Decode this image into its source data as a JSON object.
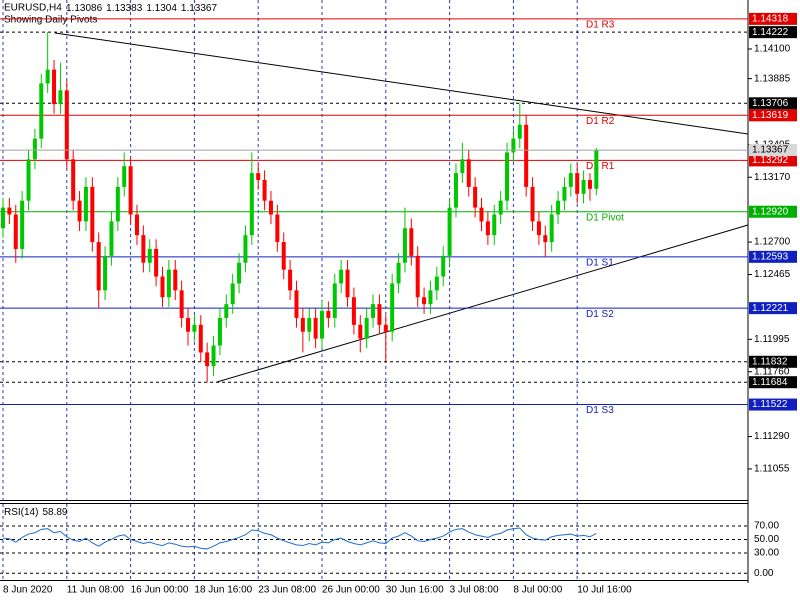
{
  "chart_data": {
    "type": "candlestick",
    "title": "EURUSD,H4",
    "subtitle": "Showing Daily Pivots",
    "up_color": "#00c800",
    "down_color": "#ff0000",
    "grid_color": "#1f3fc0",
    "categories": [
      "8 Jun 2020",
      null,
      null,
      null,
      null,
      null,
      null,
      null,
      null,
      null,
      "11 Jun 08:00",
      null,
      null,
      null,
      null,
      null,
      null,
      null,
      null,
      null,
      "16 Jun 00:00",
      null,
      null,
      null,
      null,
      null,
      null,
      null,
      null,
      null,
      "18 Jun 16:00",
      null,
      null,
      null,
      null,
      null,
      null,
      null,
      null,
      null,
      "23 Jun 08:00",
      null,
      null,
      null,
      null,
      null,
      null,
      null,
      null,
      null,
      "26 Jun 00:00",
      null,
      null,
      null,
      null,
      null,
      null,
      null,
      null,
      null,
      "30 Jun 16:00",
      null,
      null,
      null,
      null,
      null,
      null,
      null,
      null,
      null,
      "3 Jul 08:00",
      null,
      null,
      null,
      null,
      null,
      null,
      null,
      null,
      null,
      "8 Jul 00:00",
      null,
      null,
      null,
      null,
      null,
      null,
      null,
      null,
      null,
      "10 Jul 16:00",
      null,
      null,
      null
    ],
    "candles": [
      [
        1.128,
        1.1302,
        1.1273,
        1.1295
      ],
      [
        1.1295,
        1.1302,
        1.1283,
        1.129
      ],
      [
        1.129,
        1.1297,
        1.1255,
        1.1265
      ],
      [
        1.1265,
        1.1307,
        1.1258,
        1.13
      ],
      [
        1.13,
        1.1337,
        1.1293,
        1.133
      ],
      [
        1.133,
        1.1352,
        1.1323,
        1.1345
      ],
      [
        1.1345,
        1.1392,
        1.1338,
        1.1385
      ],
      [
        1.1385,
        1.14222,
        1.1378,
        1.1395
      ],
      [
        1.1395,
        1.1402,
        1.1363,
        1.137
      ],
      [
        1.137,
        1.14,
        1.1363,
        1.138
      ],
      [
        1.138,
        1.1387,
        1.1323,
        1.133
      ],
      [
        1.133,
        1.1337,
        1.1293,
        1.13
      ],
      [
        1.13,
        1.1307,
        1.1278,
        1.1285
      ],
      [
        1.1285,
        1.1317,
        1.1278,
        1.131
      ],
      [
        1.131,
        1.1317,
        1.1263,
        1.127
      ],
      [
        1.127,
        1.1277,
        1.1222,
        1.1235
      ],
      [
        1.1235,
        1.1267,
        1.1228,
        1.126
      ],
      [
        1.126,
        1.1292,
        1.1253,
        1.1285
      ],
      [
        1.1285,
        1.1317,
        1.1278,
        1.131
      ],
      [
        1.131,
        1.1335,
        1.1303,
        1.1325
      ],
      [
        1.1325,
        1.1332,
        1.1283,
        1.129
      ],
      [
        1.129,
        1.1297,
        1.1268,
        1.1275
      ],
      [
        1.1275,
        1.1282,
        1.1248,
        1.1255
      ],
      [
        1.1255,
        1.1272,
        1.1248,
        1.1265
      ],
      [
        1.1265,
        1.1272,
        1.1238,
        1.1245
      ],
      [
        1.1245,
        1.1252,
        1.1223,
        1.123
      ],
      [
        1.123,
        1.1257,
        1.1223,
        1.125
      ],
      [
        1.125,
        1.1257,
        1.1228,
        1.1235
      ],
      [
        1.1235,
        1.1242,
        1.1208,
        1.1215
      ],
      [
        1.1215,
        1.1222,
        1.1195,
        1.1205
      ],
      [
        1.1205,
        1.1217,
        1.1198,
        1.121
      ],
      [
        1.121,
        1.1217,
        1.1183,
        1.119
      ],
      [
        1.119,
        1.1197,
        1.11684,
        1.118
      ],
      [
        1.118,
        1.1202,
        1.1173,
        1.1195
      ],
      [
        1.1195,
        1.1222,
        1.1188,
        1.1215
      ],
      [
        1.1215,
        1.1232,
        1.1208,
        1.1225
      ],
      [
        1.1225,
        1.1247,
        1.1218,
        1.124
      ],
      [
        1.124,
        1.1262,
        1.1233,
        1.1255
      ],
      [
        1.1255,
        1.1282,
        1.1248,
        1.1275
      ],
      [
        1.1275,
        1.1335,
        1.1268,
        1.132
      ],
      [
        1.132,
        1.1327,
        1.1308,
        1.1315
      ],
      [
        1.1315,
        1.1322,
        1.1293,
        1.13
      ],
      [
        1.13,
        1.1307,
        1.1283,
        1.129
      ],
      [
        1.129,
        1.1297,
        1.1263,
        1.127
      ],
      [
        1.127,
        1.1277,
        1.1243,
        1.125
      ],
      [
        1.125,
        1.1257,
        1.1228,
        1.1235
      ],
      [
        1.1235,
        1.1242,
        1.1208,
        1.1215
      ],
      [
        1.1215,
        1.1222,
        1.119,
        1.1205
      ],
      [
        1.1205,
        1.1222,
        1.1198,
        1.1215
      ],
      [
        1.1215,
        1.1222,
        1.1193,
        1.12
      ],
      [
        1.12,
        1.1227,
        1.1193,
        1.122
      ],
      [
        1.122,
        1.1227,
        1.1208,
        1.1215
      ],
      [
        1.1215,
        1.1247,
        1.1208,
        1.124
      ],
      [
        1.124,
        1.1257,
        1.1233,
        1.125
      ],
      [
        1.125,
        1.1257,
        1.1223,
        1.123
      ],
      [
        1.123,
        1.1237,
        1.1203,
        1.121
      ],
      [
        1.121,
        1.1217,
        1.119,
        1.12
      ],
      [
        1.12,
        1.1222,
        1.1193,
        1.1215
      ],
      [
        1.1215,
        1.1232,
        1.1208,
        1.1225
      ],
      [
        1.1225,
        1.1232,
        1.1203,
        1.121
      ],
      [
        1.121,
        1.1217,
        1.11832,
        1.1205
      ],
      [
        1.1205,
        1.1247,
        1.1198,
        1.124
      ],
      [
        1.124,
        1.1262,
        1.1233,
        1.1255
      ],
      [
        1.1255,
        1.1295,
        1.1248,
        1.128
      ],
      [
        1.128,
        1.1287,
        1.1253,
        1.126
      ],
      [
        1.126,
        1.1267,
        1.1223,
        1.123
      ],
      [
        1.123,
        1.1237,
        1.1218,
        1.1225
      ],
      [
        1.1225,
        1.1242,
        1.1218,
        1.1235
      ],
      [
        1.1235,
        1.1252,
        1.1228,
        1.1245
      ],
      [
        1.1245,
        1.1267,
        1.1238,
        1.126
      ],
      [
        1.126,
        1.1302,
        1.1253,
        1.1295
      ],
      [
        1.1295,
        1.1327,
        1.1288,
        1.132
      ],
      [
        1.132,
        1.1342,
        1.1313,
        1.133
      ],
      [
        1.133,
        1.1337,
        1.1303,
        1.131
      ],
      [
        1.131,
        1.1317,
        1.1288,
        1.1295
      ],
      [
        1.1295,
        1.1302,
        1.1278,
        1.1285
      ],
      [
        1.1285,
        1.1292,
        1.1268,
        1.1275
      ],
      [
        1.1275,
        1.1297,
        1.1268,
        1.129
      ],
      [
        1.129,
        1.1307,
        1.1283,
        1.13
      ],
      [
        1.13,
        1.1342,
        1.1293,
        1.1335
      ],
      [
        1.1335,
        1.1352,
        1.1328,
        1.1345
      ],
      [
        1.1345,
        1.13706,
        1.1338,
        1.1355
      ],
      [
        1.1355,
        1.1362,
        1.1303,
        1.131
      ],
      [
        1.131,
        1.1317,
        1.1278,
        1.1285
      ],
      [
        1.1285,
        1.1292,
        1.1268,
        1.1275
      ],
      [
        1.1275,
        1.1282,
        1.12593,
        1.127
      ],
      [
        1.127,
        1.1297,
        1.1263,
        1.129
      ],
      [
        1.129,
        1.1307,
        1.1283,
        1.13
      ],
      [
        1.13,
        1.1317,
        1.1293,
        1.131
      ],
      [
        1.131,
        1.1327,
        1.1303,
        1.132
      ],
      [
        1.132,
        1.1327,
        1.1298,
        1.1305
      ],
      [
        1.1305,
        1.1322,
        1.1298,
        1.1315
      ],
      [
        1.1315,
        1.132,
        1.13,
        1.13086
      ],
      [
        1.13086,
        1.13383,
        1.1304,
        1.13367
      ]
    ],
    "ylim": [
      1.1083,
      1.14455
    ],
    "yticks": [
      {
        "value": 1.141,
        "label": "1.14100"
      },
      {
        "value": 1.13885,
        "label": "1.13885"
      },
      {
        "value": 1.13405,
        "label": "1.13405"
      },
      {
        "value": 1.1317,
        "label": "1.13170"
      },
      {
        "value": 1.127,
        "label": "1.12700"
      },
      {
        "value": 1.12465,
        "label": "1.12465"
      },
      {
        "value": 1.11995,
        "label": "1.11995"
      },
      {
        "value": 1.1176,
        "label": "1.11760"
      },
      {
        "value": 1.1129,
        "label": "1.11290"
      },
      {
        "value": 1.11055,
        "label": "1.11055"
      }
    ],
    "levels": [
      {
        "name": "D1 R3",
        "value": 1.14318,
        "color": "#e00000"
      },
      {
        "name": "D1 R2",
        "value": 1.13619,
        "color": "#e00000"
      },
      {
        "name": "D1 R1",
        "value": 1.13292,
        "color": "#e00000"
      },
      {
        "name": "D1 Pivot",
        "value": {
          "value": 1.1292,
          "label": "1.12920"
        },
        "color": "#00b000"
      },
      {
        "name": "D1 S1",
        "value": 1.12593,
        "color": "#1020c0"
      },
      {
        "name": "D1 S2",
        "value": 1.12221,
        "color": "#1020c0"
      },
      {
        "name": "D1 S3",
        "value": 1.11522,
        "color": "#1020c0"
      }
    ],
    "hlines": [
      1.14222,
      1.13706,
      1.11832,
      1.11684
    ],
    "rsi": {
      "name": "RSI(14)",
      "color": "#1f6fd0",
      "ylim": [
        -10,
        104
      ],
      "yticks": [
        {
          "value": 70,
          "label": "70.00"
        },
        {
          "value": 50,
          "label": "50.00"
        },
        {
          "value": 30,
          "label": "30.00"
        },
        {
          "value": 0,
          "label": "0.00"
        }
      ],
      "values": [
        52,
        51,
        46,
        53,
        58,
        60,
        65,
        66,
        60,
        62,
        54,
        49,
        47,
        52,
        45,
        40,
        46,
        50,
        55,
        57,
        50,
        47,
        44,
        46,
        43,
        41,
        45,
        43,
        40,
        39,
        40,
        37,
        36,
        40,
        45,
        47,
        50,
        53,
        57,
        64,
        63,
        59,
        57,
        52,
        48,
        45,
        42,
        41,
        44,
        42,
        46,
        45,
        50,
        52,
        47,
        44,
        42,
        45,
        48,
        45,
        44,
        52,
        55,
        60,
        55,
        48,
        47,
        50,
        52,
        55,
        61,
        65,
        66,
        61,
        57,
        55,
        53,
        57,
        59,
        64,
        66,
        67,
        57,
        52,
        50,
        49,
        54,
        56,
        57,
        58,
        55,
        56,
        54,
        58.89
      ]
    }
  }
}
